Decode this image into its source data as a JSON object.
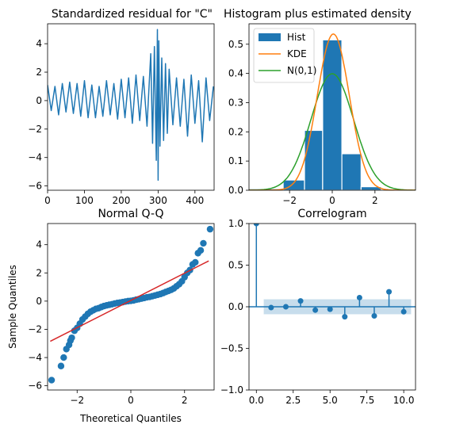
{
  "chart_data": [
    {
      "id": "residual",
      "type": "line",
      "title": "Standardized residual for \"C\"",
      "xlim": [
        0,
        452
      ],
      "ylim": [
        -6.3,
        5.4
      ],
      "xticks": [
        0,
        100,
        200,
        300,
        400
      ],
      "xtick_labels": [
        "0",
        "100",
        "200",
        "300",
        "400"
      ],
      "yticks": [
        -6,
        -4,
        -2,
        0,
        2,
        4
      ],
      "ytick_labels": [
        "−6",
        "−4",
        "−2",
        "0",
        "2",
        "4"
      ],
      "series": [
        {
          "color": "#1f77b4",
          "x": [
            0,
            10,
            20,
            30,
            40,
            50,
            60,
            70,
            80,
            90,
            100,
            110,
            120,
            130,
            140,
            150,
            160,
            170,
            180,
            190,
            200,
            210,
            220,
            230,
            240,
            250,
            260,
            270,
            280,
            285,
            290,
            295,
            298,
            300,
            302,
            305,
            310,
            315,
            320,
            325,
            330,
            340,
            350,
            360,
            370,
            380,
            390,
            400,
            410,
            420,
            430,
            440,
            450
          ],
          "y": [
            1.1,
            -0.7,
            1.0,
            -1.0,
            1.2,
            -0.8,
            1.3,
            -0.9,
            1.2,
            -1.1,
            1.4,
            -1.2,
            1.1,
            -1.2,
            1.0,
            -1.1,
            1.4,
            -1.0,
            1.2,
            -1.3,
            1.5,
            -1.2,
            1.6,
            -1.6,
            1.8,
            -1.4,
            1.7,
            -1.8,
            3.3,
            -3.0,
            3.8,
            -4.2,
            5.0,
            -5.6,
            4.2,
            -3.2,
            3.0,
            -2.8,
            2.6,
            -2.3,
            2.2,
            -1.7,
            1.6,
            -1.8,
            1.5,
            -2.5,
            1.8,
            -1.6,
            1.4,
            -2.9,
            1.6,
            -1.4,
            1.0
          ]
        }
      ]
    },
    {
      "id": "histogram",
      "type": "bar",
      "title": "Histogram plus estimated density",
      "xlim": [
        -3.9,
        3.9
      ],
      "ylim": [
        0,
        0.57
      ],
      "xticks": [
        -2,
        0,
        2
      ],
      "xtick_labels": [
        "−2",
        "0",
        "2"
      ],
      "yticks": [
        0.0,
        0.1,
        0.2,
        0.3,
        0.4,
        0.5
      ],
      "ytick_labels": [
        "0.0",
        "0.1",
        "0.2",
        "0.3",
        "0.4",
        "0.5"
      ],
      "bin_edges": [
        -3.9,
        -2.3,
        -1.3,
        -0.45,
        0.45,
        1.35,
        2.3,
        3.9
      ],
      "bin_values": [
        0.005,
        0.035,
        0.205,
        0.515,
        0.125,
        0.012,
        0.003
      ],
      "legend": {
        "position": "top-left",
        "entries": [
          "Hist",
          "KDE",
          "N(0,1)"
        ]
      },
      "colors": {
        "hist": "#1f77b4",
        "kde": "#ff7f0e",
        "normal": "#2ca02c"
      },
      "kde_peak": {
        "mean": 0.05,
        "sd": 0.75,
        "amplitude": 0.535
      }
    },
    {
      "id": "qq",
      "type": "scatter",
      "title": "Normal Q-Q",
      "xlabel": "Theoretical Quantiles",
      "ylabel": "Sample Quantiles",
      "xlim": [
        -3.1,
        3.1
      ],
      "ylim": [
        -6.3,
        5.5
      ],
      "xticks": [
        -2,
        0,
        2
      ],
      "xtick_labels": [
        "−2",
        "0",
        "2"
      ],
      "yticks": [
        -6,
        -4,
        -2,
        0,
        2,
        4
      ],
      "ytick_labels": [
        "−6",
        "−4",
        "−2",
        "0",
        "2",
        "4"
      ],
      "points": {
        "x": [
          -2.95,
          -2.6,
          -2.5,
          -2.4,
          -2.3,
          -2.25,
          -2.2,
          -2.1,
          -2.0,
          -1.9,
          -1.8,
          -1.7,
          -1.6,
          -1.5,
          -1.4,
          -1.3,
          -1.2,
          -1.1,
          -1.0,
          -0.9,
          -0.8,
          -0.7,
          -0.6,
          -0.5,
          -0.4,
          -0.3,
          -0.2,
          -0.1,
          0.0,
          0.1,
          0.2,
          0.3,
          0.4,
          0.5,
          0.6,
          0.7,
          0.8,
          0.9,
          1.0,
          1.1,
          1.2,
          1.3,
          1.4,
          1.5,
          1.6,
          1.7,
          1.8,
          1.9,
          2.0,
          2.1,
          2.2,
          2.3,
          2.4,
          2.5,
          2.6,
          2.7,
          2.95
        ],
        "y": [
          -5.6,
          -4.6,
          -4.0,
          -3.4,
          -3.1,
          -2.8,
          -2.6,
          -2.1,
          -1.9,
          -1.6,
          -1.3,
          -1.1,
          -0.9,
          -0.75,
          -0.65,
          -0.55,
          -0.5,
          -0.42,
          -0.35,
          -0.3,
          -0.26,
          -0.22,
          -0.17,
          -0.13,
          -0.1,
          -0.07,
          -0.03,
          0.0,
          0.02,
          0.05,
          0.1,
          0.14,
          0.18,
          0.22,
          0.27,
          0.3,
          0.35,
          0.4,
          0.45,
          0.5,
          0.57,
          0.65,
          0.72,
          0.8,
          0.9,
          1.05,
          1.2,
          1.4,
          1.7,
          2.0,
          2.2,
          2.6,
          2.75,
          3.4,
          3.6,
          4.1,
          5.1
        ]
      },
      "reference_line": {
        "x": [
          -3.0,
          2.9
        ],
        "y": [
          -2.85,
          2.85
        ],
        "color": "#d62728"
      },
      "marker_color": "#1f77b4"
    },
    {
      "id": "correlogram",
      "type": "scatter",
      "title": "Correlogram",
      "xlim": [
        -0.5,
        10.8
      ],
      "ylim": [
        -1.0,
        1.0
      ],
      "xticks": [
        0.0,
        2.5,
        5.0,
        7.5,
        10.0
      ],
      "xtick_labels": [
        "0.0",
        "2.5",
        "5.0",
        "7.5",
        "10.0"
      ],
      "yticks": [
        -1.0,
        -0.5,
        0.0,
        0.5,
        1.0
      ],
      "ytick_labels": [
        "−1.0",
        "−0.5",
        "0.0",
        "0.5",
        "1.0"
      ],
      "lags": [
        0,
        1,
        2,
        3,
        4,
        5,
        6,
        7,
        8,
        9,
        10
      ],
      "acf": [
        1.0,
        -0.01,
        0.0,
        0.07,
        -0.04,
        -0.03,
        -0.12,
        0.11,
        -0.11,
        0.18,
        -0.06
      ],
      "confidence_band": {
        "x": [
          0.5,
          10.5
        ],
        "lower": -0.09,
        "upper": 0.09,
        "color": "#1f77b4"
      },
      "marker_color": "#1f77b4"
    }
  ]
}
